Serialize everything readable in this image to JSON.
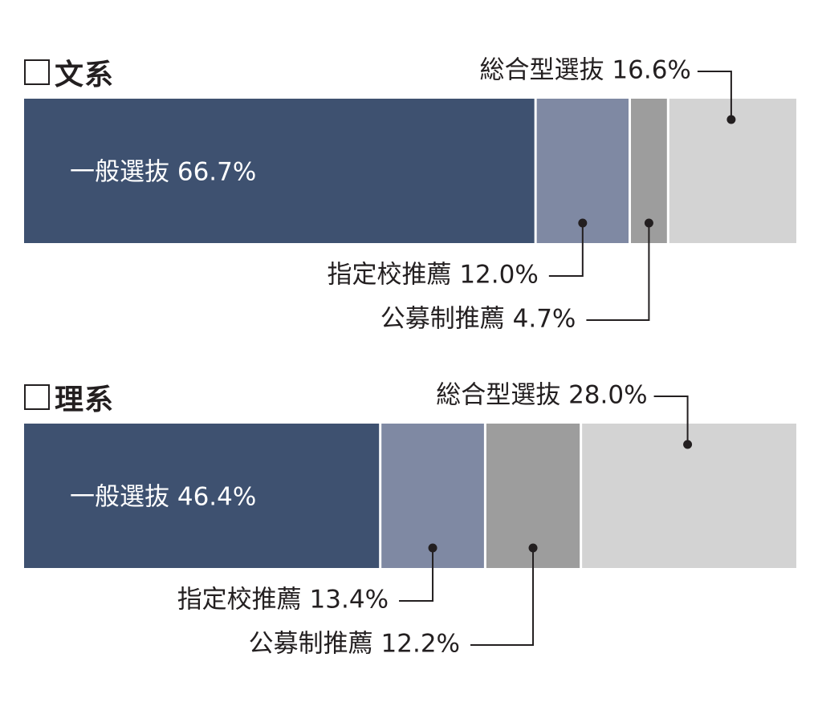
{
  "chart_data": [
    {
      "type": "bar",
      "orientation": "horizontal-stacked-100",
      "title": "文系",
      "segments": [
        {
          "name": "一般選抜",
          "label": "一般選抜 66.7%",
          "value": 66.7,
          "color": "#3e5170"
        },
        {
          "name": "指定校推薦",
          "label": "指定校推薦 12.0%",
          "value": 12.0,
          "color": "#7f89a3"
        },
        {
          "name": "公募制推薦",
          "label": "公募制推薦 4.7%",
          "value": 4.7,
          "color": "#9d9d9d"
        },
        {
          "name": "総合型選抜",
          "label": "総合型選抜 16.6%",
          "value": 16.6,
          "color": "#d3d3d3"
        }
      ]
    },
    {
      "type": "bar",
      "orientation": "horizontal-stacked-100",
      "title": "理系",
      "segments": [
        {
          "name": "一般選抜",
          "label": "一般選抜 46.4%",
          "value": 46.4,
          "color": "#3e5170"
        },
        {
          "name": "指定校推薦",
          "label": "指定校推薦 13.4%",
          "value": 13.4,
          "color": "#7f89a3"
        },
        {
          "name": "公募制推薦",
          "label": "公募制推薦 12.2%",
          "value": 12.2,
          "color": "#9d9d9d"
        },
        {
          "name": "総合型選抜",
          "label": "総合型選抜 28.0%",
          "value": 28.0,
          "color": "#d3d3d3"
        }
      ]
    }
  ]
}
